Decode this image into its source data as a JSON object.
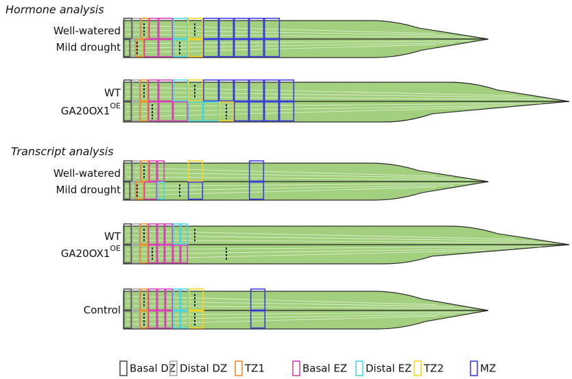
{
  "sections": [
    {
      "title": "Hormone analysis",
      "groups": [
        {
          "labels": [
            "Well-watered",
            "Mild drought"
          ]
        },
        {
          "labels": [
            "WT",
            {
              "name": "GA20OX1",
              "superscript": "OE"
            }
          ]
        }
      ]
    },
    {
      "title": "Transcript analysis",
      "groups": [
        {
          "labels": [
            "Well-watered",
            "Mild drought"
          ]
        },
        {
          "labels": [
            "WT",
            {
              "name": "GA20OX1",
              "superscript": "OE"
            }
          ]
        },
        {
          "labels": [
            "Control"
          ]
        }
      ]
    }
  ],
  "legend": [
    {
      "label": "Basal DZ",
      "color": "#4d4d4d"
    },
    {
      "label": "Distal DZ",
      "color": "#a6a6a6"
    },
    {
      "label": "TZ1",
      "color": "#f28c28"
    },
    {
      "label": "Basal EZ",
      "color": "#d93fb8"
    },
    {
      "label": "Distal EZ",
      "color": "#45d6e6"
    },
    {
      "label": "TZ2",
      "color": "#ffd21f"
    },
    {
      "label": "MZ",
      "color": "#3b3be0"
    }
  ]
}
